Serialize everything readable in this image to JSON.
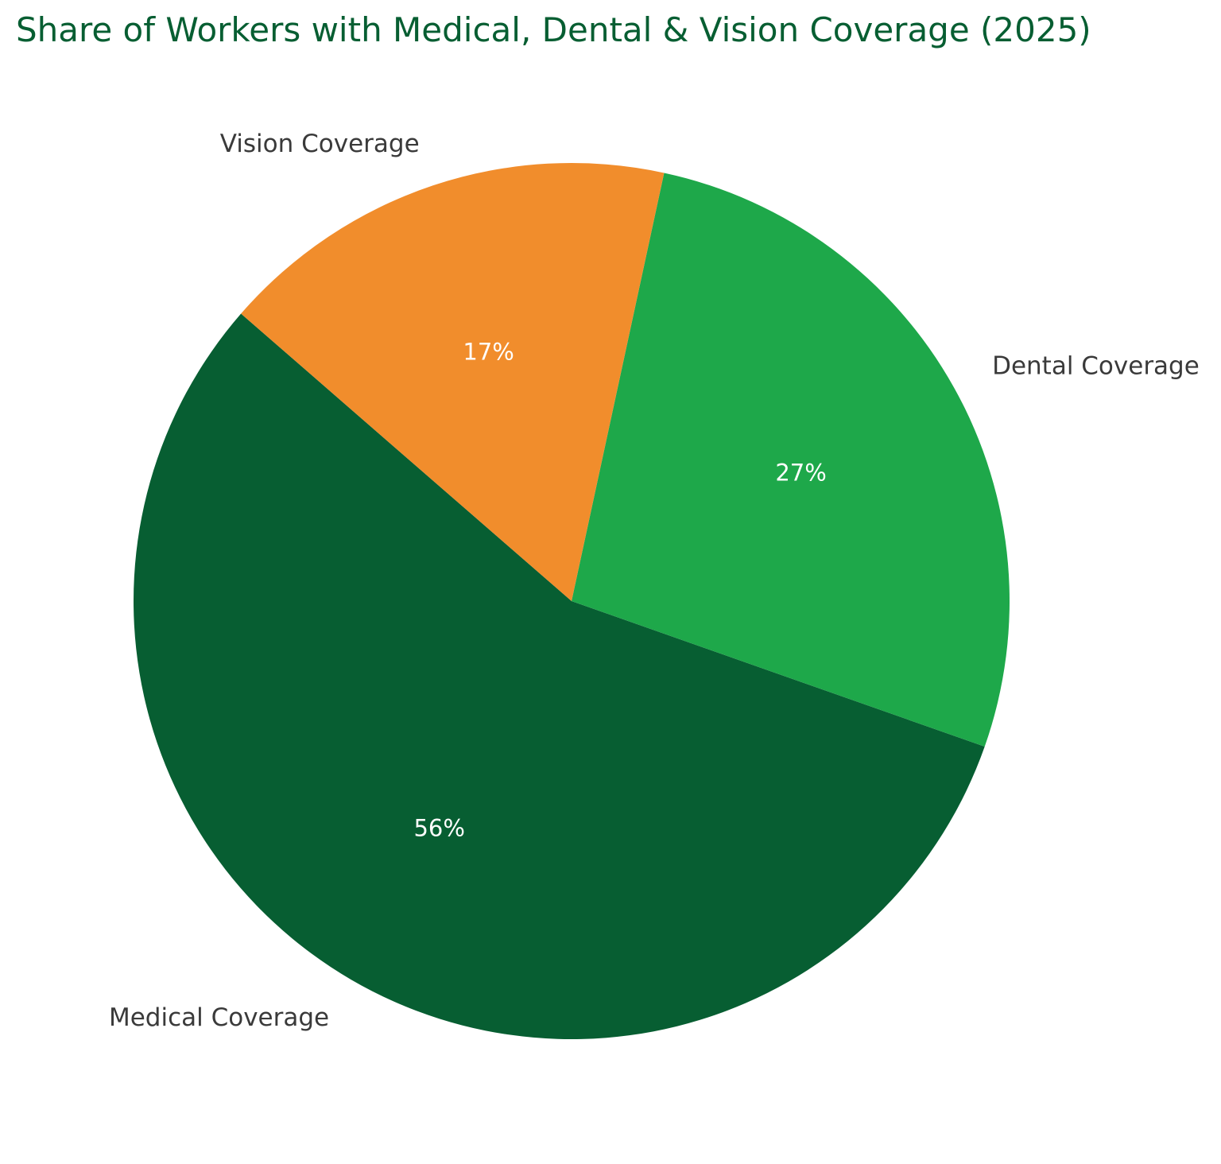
{
  "chart_data": {
    "type": "pie",
    "title": "Share of Workers with Medical, Dental & Vision Coverage (2025)",
    "categories": [
      "Medical Coverage",
      "Dental Coverage",
      "Vision Coverage"
    ],
    "values": [
      56,
      27,
      17
    ],
    "value_labels": [
      "56%",
      "27%",
      "17%"
    ],
    "colors": [
      "#075e32",
      "#1ea84a",
      "#f18d2c"
    ],
    "legend": "none",
    "labels_position": "outside"
  }
}
